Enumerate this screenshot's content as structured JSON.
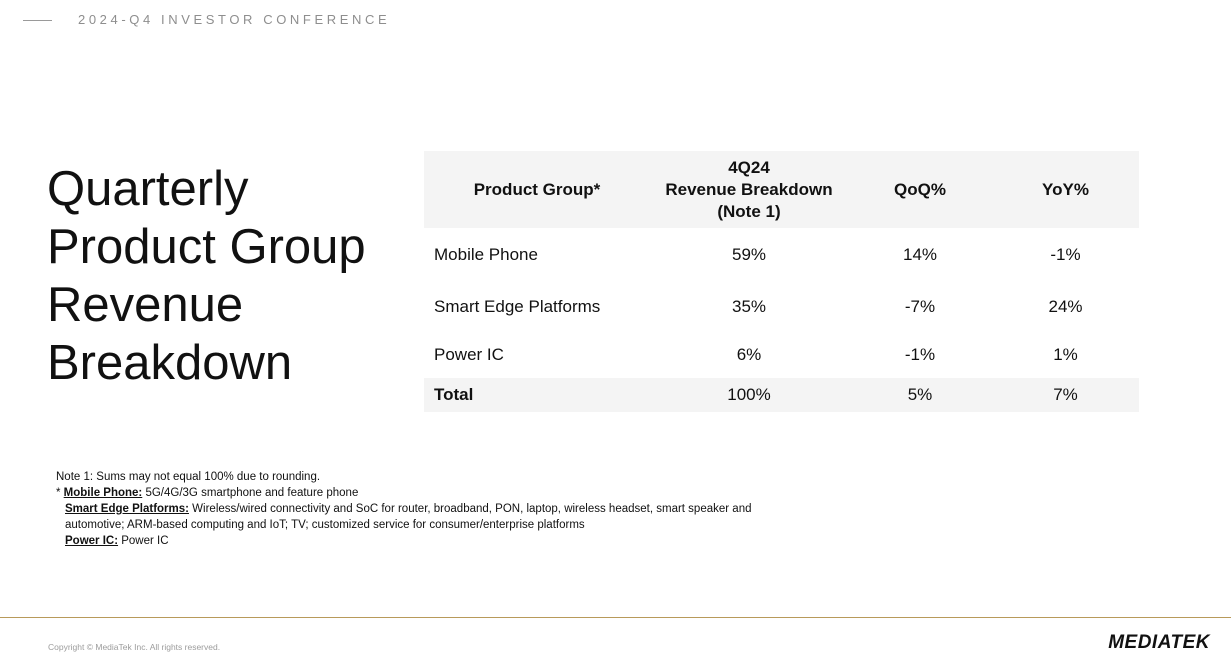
{
  "header": {
    "conference": "2024-Q4 INVESTOR CONFERENCE"
  },
  "title": {
    "lines": [
      "Quarterly",
      "Product Group",
      "Revenue",
      "Breakdown"
    ]
  },
  "table": {
    "headers": {
      "product_group": "Product Group*",
      "revenue_line1": "4Q24",
      "revenue_line2": "Revenue Breakdown",
      "revenue_line3": "(Note 1)",
      "qoq": "QoQ%",
      "yoy": "YoY%"
    },
    "rows": [
      {
        "group": "Mobile Phone",
        "revenue": "59%",
        "qoq": "14%",
        "yoy": "-1%"
      },
      {
        "group": "Smart Edge Platforms",
        "revenue": "35%",
        "qoq": "-7%",
        "yoy": "24%"
      },
      {
        "group": "Power IC",
        "revenue": "6%",
        "qoq": "-1%",
        "yoy": "1%"
      }
    ],
    "total": {
      "group": "Total",
      "revenue": "100%",
      "qoq": "5%",
      "yoy": "7%"
    }
  },
  "notes": {
    "note1": "Note 1: Sums may not equal 100% due to rounding.",
    "star": "* ",
    "mobile_term": "Mobile Phone:",
    "mobile_desc": " 5G/4G/3G smartphone and feature phone",
    "smart_term": "Smart Edge Platforms:",
    "smart_desc_line1": " Wireless/wired connectivity and SoC for router, broadband, PON, laptop, wireless headset, smart speaker and",
    "smart_desc_line2": "automotive;  ARM-based computing and IoT; TV; customized service for consumer/enterprise platforms",
    "power_term": "Power IC:",
    "power_desc": " Power IC"
  },
  "footer": {
    "copyright": "Copyright © MediaTek Inc. All rights reserved.",
    "logo": "MEDIATEK"
  }
}
